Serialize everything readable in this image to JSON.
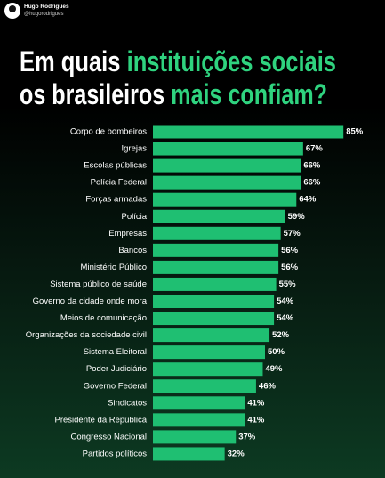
{
  "author": {
    "name": "Hugo Rodrigues",
    "handle": "@hugorodrigues"
  },
  "chart_data": {
    "type": "bar",
    "orientation": "horizontal",
    "title": [
      [
        {
          "text": "Em quais",
          "color": "#ffffff"
        },
        {
          "text": "instituições sociais",
          "color": "#2fd37f"
        }
      ],
      [
        {
          "text": "os brasileiros",
          "color": "#ffffff"
        },
        {
          "text": "mais confiam?",
          "color": "#2fd37f"
        }
      ]
    ],
    "categories": [
      "Corpo de bombeiros",
      "Igrejas",
      "Escolas públicas",
      "Polícia Federal",
      "Forças armadas",
      "Polícia",
      "Empresas",
      "Bancos",
      "Ministério Público",
      "Sistema público de saúde",
      "Governo da cidade onde mora",
      "Meios de comunicação",
      "Organizações da sociedade civil",
      "Sistema Eleitoral",
      "Poder Judiciário",
      "Governo Federal",
      "Sindicatos",
      "Presidente da República",
      "Congresso Nacional",
      "Partidos políticos"
    ],
    "values": [
      85,
      67,
      66,
      66,
      64,
      59,
      57,
      56,
      56,
      55,
      54,
      54,
      52,
      50,
      49,
      46,
      41,
      41,
      37,
      32
    ],
    "value_labels": [
      "85%",
      "67%",
      "66%",
      "66%",
      "64%",
      "59%",
      "57%",
      "56%",
      "56%",
      "55%",
      "54%",
      "54%",
      "52%",
      "50%",
      "49%",
      "46%",
      "41%",
      "41%",
      "37%",
      "32%"
    ],
    "color": "#1fbf72",
    "xlim": [
      0,
      100
    ]
  }
}
